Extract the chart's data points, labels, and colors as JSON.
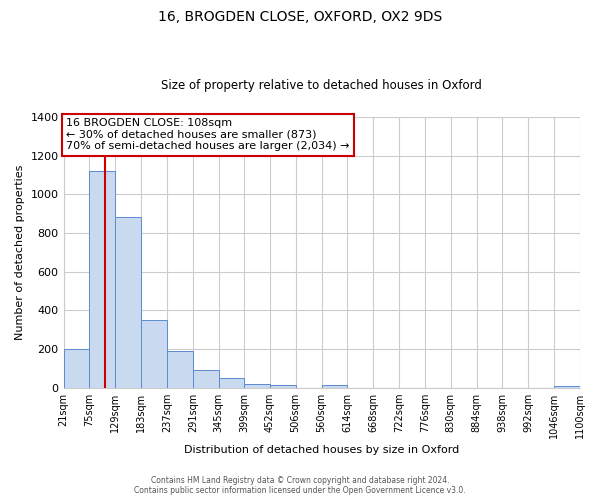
{
  "title": "16, BROGDEN CLOSE, OXFORD, OX2 9DS",
  "subtitle": "Size of property relative to detached houses in Oxford",
  "xlabel": "Distribution of detached houses by size in Oxford",
  "ylabel": "Number of detached properties",
  "bin_labels": [
    "21sqm",
    "75sqm",
    "129sqm",
    "183sqm",
    "237sqm",
    "291sqm",
    "345sqm",
    "399sqm",
    "452sqm",
    "506sqm",
    "560sqm",
    "614sqm",
    "668sqm",
    "722sqm",
    "776sqm",
    "830sqm",
    "884sqm",
    "938sqm",
    "992sqm",
    "1046sqm",
    "1100sqm"
  ],
  "bin_edges": [
    21,
    75,
    129,
    183,
    237,
    291,
    345,
    399,
    452,
    506,
    560,
    614,
    668,
    722,
    776,
    830,
    884,
    938,
    992,
    1046,
    1100
  ],
  "bar_heights": [
    200,
    1120,
    880,
    350,
    190,
    95,
    50,
    20,
    15,
    0,
    15,
    0,
    0,
    0,
    0,
    0,
    0,
    0,
    0,
    10
  ],
  "bar_color": "#c9d9f0",
  "bar_edge_color": "#5b8bd0",
  "property_line_x": 108,
  "property_line_color": "#cc0000",
  "annotation_line1": "16 BROGDEN CLOSE: 108sqm",
  "annotation_line2": "← 30% of detached houses are smaller (873)",
  "annotation_line3": "70% of semi-detached houses are larger (2,034) →",
  "annotation_box_color": "#ffffff",
  "annotation_box_edge": "#cc0000",
  "ylim": [
    0,
    1400
  ],
  "yticks": [
    0,
    200,
    400,
    600,
    800,
    1000,
    1200,
    1400
  ],
  "footer_line1": "Contains HM Land Registry data © Crown copyright and database right 2024.",
  "footer_line2": "Contains public sector information licensed under the Open Government Licence v3.0.",
  "background_color": "#ffffff",
  "grid_color": "#cccccc",
  "title_fontsize": 10,
  "subtitle_fontsize": 8.5
}
